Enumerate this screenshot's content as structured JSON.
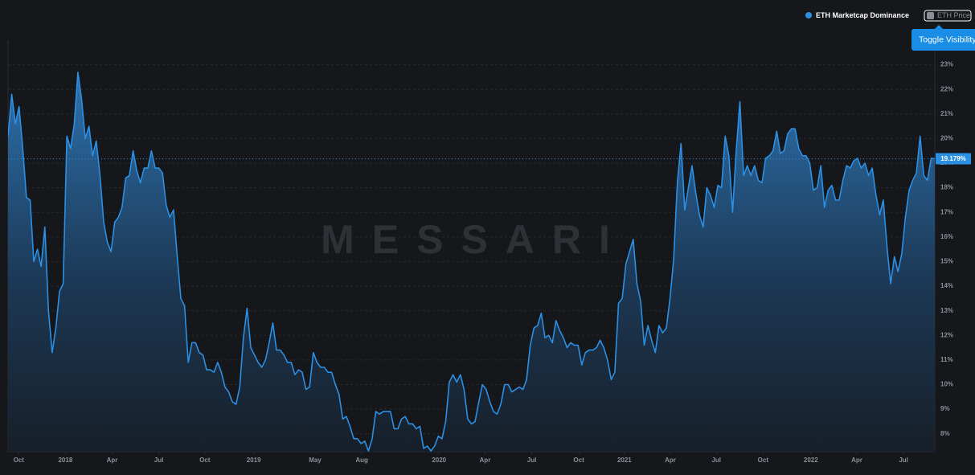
{
  "chart_data": {
    "type": "area",
    "watermark": "MESSARI",
    "tooltip": "Toggle Visibility",
    "series": [
      {
        "name": "ETH Marketcap Dominance",
        "color": "#2b8fe3",
        "visible": true,
        "values": [
          20.1,
          21.8,
          20.6,
          21.3,
          19.6,
          17.6,
          17.5,
          15.0,
          15.5,
          14.8,
          16.4,
          13.0,
          11.3,
          12.3,
          13.8,
          14.1,
          20.1,
          19.6,
          20.6,
          22.7,
          21.6,
          20.0,
          20.5,
          19.3,
          19.9,
          18.5,
          16.6,
          15.8,
          15.4,
          16.6,
          16.8,
          17.2,
          18.4,
          18.5,
          19.5,
          18.7,
          18.2,
          18.8,
          18.8,
          19.5,
          18.8,
          18.8,
          18.6,
          17.3,
          16.8,
          17.1,
          15.2,
          13.5,
          13.2,
          10.9,
          11.7,
          11.7,
          11.3,
          11.2,
          10.6,
          10.6,
          10.5,
          10.9,
          10.5,
          9.9,
          9.7,
          9.3,
          9.2,
          9.9,
          11.9,
          13.1,
          11.5,
          11.2,
          10.9,
          10.7,
          11.0,
          11.7,
          12.5,
          11.4,
          11.4,
          11.2,
          10.9,
          10.9,
          10.4,
          10.6,
          10.5,
          9.8,
          9.9,
          11.3,
          10.9,
          10.7,
          10.7,
          10.5,
          10.5,
          10.0,
          9.6,
          8.6,
          8.7,
          8.3,
          7.8,
          7.8,
          7.6,
          7.7,
          7.3,
          7.8,
          8.9,
          8.8,
          8.9,
          8.9,
          8.9,
          8.2,
          8.2,
          8.6,
          8.7,
          8.4,
          8.4,
          8.2,
          8.3,
          7.4,
          7.5,
          7.3,
          7.5,
          7.9,
          7.8,
          8.5,
          10.1,
          10.4,
          10.1,
          10.4,
          9.8,
          8.6,
          8.4,
          8.5,
          9.3,
          10.0,
          9.8,
          9.3,
          8.9,
          8.8,
          9.2,
          10.0,
          10.0,
          9.7,
          9.8,
          9.9,
          9.8,
          10.2,
          11.6,
          12.3,
          12.4,
          12.9,
          11.9,
          12.0,
          11.7,
          12.6,
          12.2,
          11.9,
          11.5,
          11.7,
          11.6,
          11.6,
          10.8,
          11.3,
          11.4,
          11.4,
          11.5,
          11.8,
          11.5,
          11.0,
          10.2,
          10.5,
          13.3,
          13.5,
          14.9,
          15.4,
          15.9,
          14.1,
          13.4,
          11.6,
          12.4,
          11.8,
          11.3,
          12.4,
          12.1,
          12.3,
          13.5,
          15.1,
          18.2,
          19.8,
          17.1,
          18.0,
          18.9,
          17.8,
          16.9,
          16.4,
          18.0,
          17.7,
          17.2,
          18.1,
          18.0,
          20.1,
          19.3,
          17.0,
          19.5,
          21.5,
          18.5,
          18.9,
          18.5,
          18.9,
          18.3,
          18.2,
          19.2,
          19.3,
          19.5,
          20.3,
          19.4,
          19.5,
          20.2,
          20.4,
          20.4,
          19.6,
          19.3,
          19.3,
          19.0,
          17.9,
          18.0,
          18.9,
          17.2,
          17.9,
          18.1,
          17.5,
          17.5,
          18.3,
          18.9,
          18.8,
          19.1,
          19.2,
          18.8,
          19.0,
          18.5,
          18.8,
          17.7,
          16.9,
          17.5,
          15.6,
          14.1,
          15.2,
          14.6,
          15.3,
          16.8,
          17.9,
          18.3,
          18.6,
          20.1,
          18.5,
          18.3,
          19.2,
          19.179
        ],
        "last_label": "19.179%"
      },
      {
        "name": "ETH Price",
        "color": "#8a8f98",
        "visible": false
      }
    ],
    "xlim": [
      0,
      252
    ],
    "xticks": [
      {
        "value": 2.9,
        "label": "Oct"
      },
      {
        "value": 15.6,
        "label": "2018"
      },
      {
        "value": 28.3,
        "label": "Apr"
      },
      {
        "value": 41.0,
        "label": "Jul"
      },
      {
        "value": 53.5,
        "label": "Oct"
      },
      {
        "value": 66.8,
        "label": "2019"
      },
      {
        "value": 83.5,
        "label": "May"
      },
      {
        "value": 96.2,
        "label": "Aug"
      },
      {
        "value": 117.2,
        "label": "2020"
      },
      {
        "value": 129.7,
        "label": "Apr"
      },
      {
        "value": 142.4,
        "label": "Jul"
      },
      {
        "value": 155.2,
        "label": "Oct"
      },
      {
        "value": 167.6,
        "label": "2021"
      },
      {
        "value": 180.1,
        "label": "Apr"
      },
      {
        "value": 192.6,
        "label": "Jul"
      },
      {
        "value": 205.3,
        "label": "Oct"
      },
      {
        "value": 218.3,
        "label": "2022"
      },
      {
        "value": 230.8,
        "label": "Apr"
      },
      {
        "value": 243.5,
        "label": "Jul"
      }
    ],
    "ylim": [
      7.27,
      24
    ],
    "yticks": [
      {
        "value": 8,
        "label": "8%"
      },
      {
        "value": 9,
        "label": "9%"
      },
      {
        "value": 10,
        "label": "10%"
      },
      {
        "value": 11,
        "label": "11%"
      },
      {
        "value": 12,
        "label": "12%"
      },
      {
        "value": 13,
        "label": "13%"
      },
      {
        "value": 14,
        "label": "14%"
      },
      {
        "value": 15,
        "label": "15%"
      },
      {
        "value": 16,
        "label": "16%"
      },
      {
        "value": 17,
        "label": "17%"
      },
      {
        "value": 18,
        "label": "18%"
      },
      {
        "value": 19,
        "label": "19%"
      },
      {
        "value": 20,
        "label": "20%"
      },
      {
        "value": 21,
        "label": "21%"
      },
      {
        "value": 22,
        "label": "22%"
      },
      {
        "value": 23,
        "label": "23%"
      }
    ],
    "grid": true
  }
}
